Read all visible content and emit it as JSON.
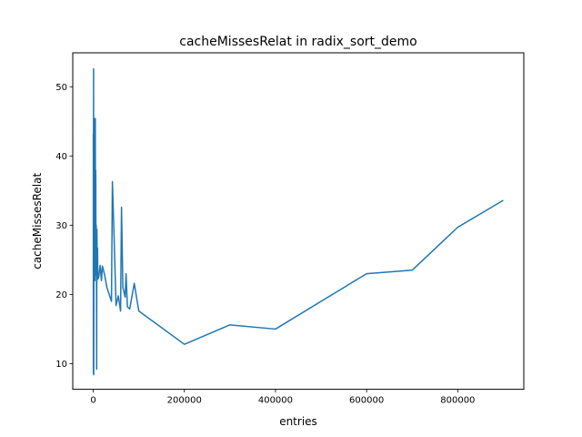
{
  "chart_data": {
    "type": "line",
    "title": "cacheMissesRelat in radix_sort_demo",
    "xlabel": "entries",
    "ylabel": "cacheMissesRelat",
    "xlim": [
      -45000,
      945000
    ],
    "ylim": [
      6.3,
      54.9
    ],
    "xticks": [
      0,
      200000,
      400000,
      600000,
      800000
    ],
    "xtick_labels": [
      "0",
      "200000",
      "400000",
      "600000",
      "800000"
    ],
    "yticks": [
      10,
      20,
      30,
      40,
      50
    ],
    "ytick_labels": [
      "10",
      "20",
      "30",
      "40",
      "50"
    ],
    "grid": false,
    "legend": "none",
    "series": [
      {
        "color": "#1f77b4",
        "x": [
          100,
          300,
          500,
          700,
          1000,
          1500,
          2000,
          2500,
          3000,
          3500,
          4000,
          4500,
          5000,
          5500,
          6000,
          6500,
          7000,
          7500,
          8000,
          8500,
          9000,
          9500,
          10000,
          12000,
          15000,
          18000,
          20000,
          25000,
          30000,
          40000,
          42000,
          45000,
          50000,
          55000,
          60000,
          62000,
          65000,
          70000,
          72000,
          75000,
          80000,
          90000,
          100000,
          200000,
          300000,
          400000,
          500000,
          600000,
          700000,
          800000,
          900000
        ],
        "y": [
          43.2,
          8.6,
          36.0,
          52.6,
          8.4,
          28.0,
          41.5,
          23.5,
          45.4,
          22.0,
          41.0,
          45.4,
          22.8,
          37.9,
          24.5,
          30.0,
          26.0,
          9.2,
          29.4,
          26.2,
          24.0,
          26.7,
          22.2,
          22.5,
          24.2,
          22.0,
          24.1,
          22.8,
          21.0,
          19.0,
          36.3,
          30.0,
          18.4,
          19.8,
          17.6,
          32.6,
          21.0,
          19.6,
          23.0,
          18.2,
          17.9,
          21.6,
          17.6,
          12.8,
          15.6,
          15.0,
          19.0,
          23.0,
          23.5,
          29.7,
          33.6
        ]
      }
    ]
  }
}
